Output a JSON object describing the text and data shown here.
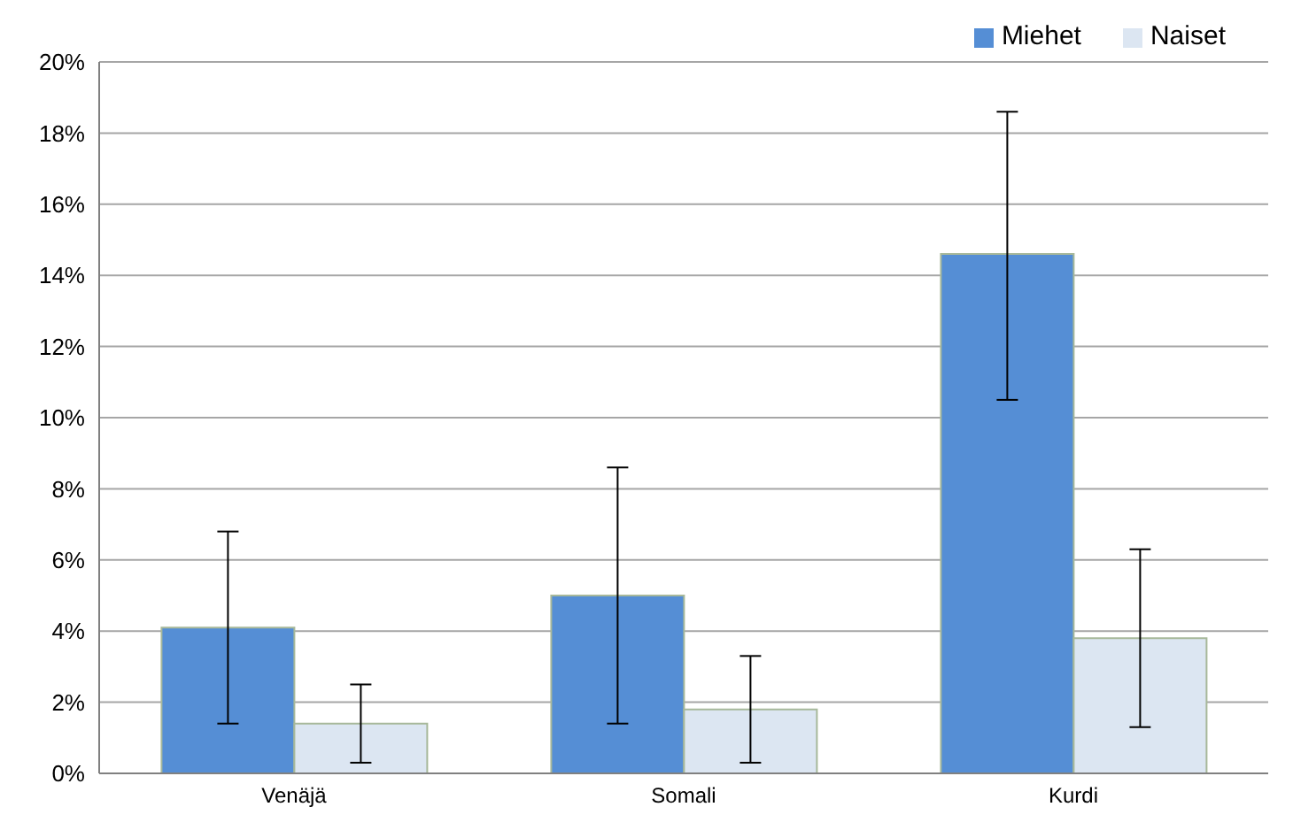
{
  "chart_data": {
    "type": "bar",
    "categories": [
      "Venäjä",
      "Somali",
      "Kurdi"
    ],
    "series": [
      {
        "name": "Miehet",
        "color": "#558ed5",
        "values": [
          4.1,
          5.0,
          14.6
        ],
        "errors": [
          [
            1.4,
            6.8
          ],
          [
            1.4,
            8.6
          ],
          [
            10.5,
            18.6
          ]
        ]
      },
      {
        "name": "Naiset",
        "color": "#dce6f2",
        "values": [
          1.4,
          1.8,
          3.8
        ],
        "errors": [
          [
            0.3,
            2.5
          ],
          [
            0.3,
            3.3
          ],
          [
            1.3,
            6.3
          ]
        ]
      }
    ],
    "ylim": [
      0,
      20
    ],
    "yticks": [
      {
        "value": 0,
        "label": "0%"
      },
      {
        "value": 2,
        "label": "2%"
      },
      {
        "value": 4,
        "label": "4%"
      },
      {
        "value": 6,
        "label": "6%"
      },
      {
        "value": 8,
        "label": "8%"
      },
      {
        "value": 10,
        "label": "10%"
      },
      {
        "value": 12,
        "label": "12%"
      },
      {
        "value": 14,
        "label": "14%"
      },
      {
        "value": 16,
        "label": "16%"
      },
      {
        "value": 18,
        "label": "18%"
      },
      {
        "value": 20,
        "label": "20%"
      }
    ],
    "grid": "y",
    "legend": "top right"
  }
}
